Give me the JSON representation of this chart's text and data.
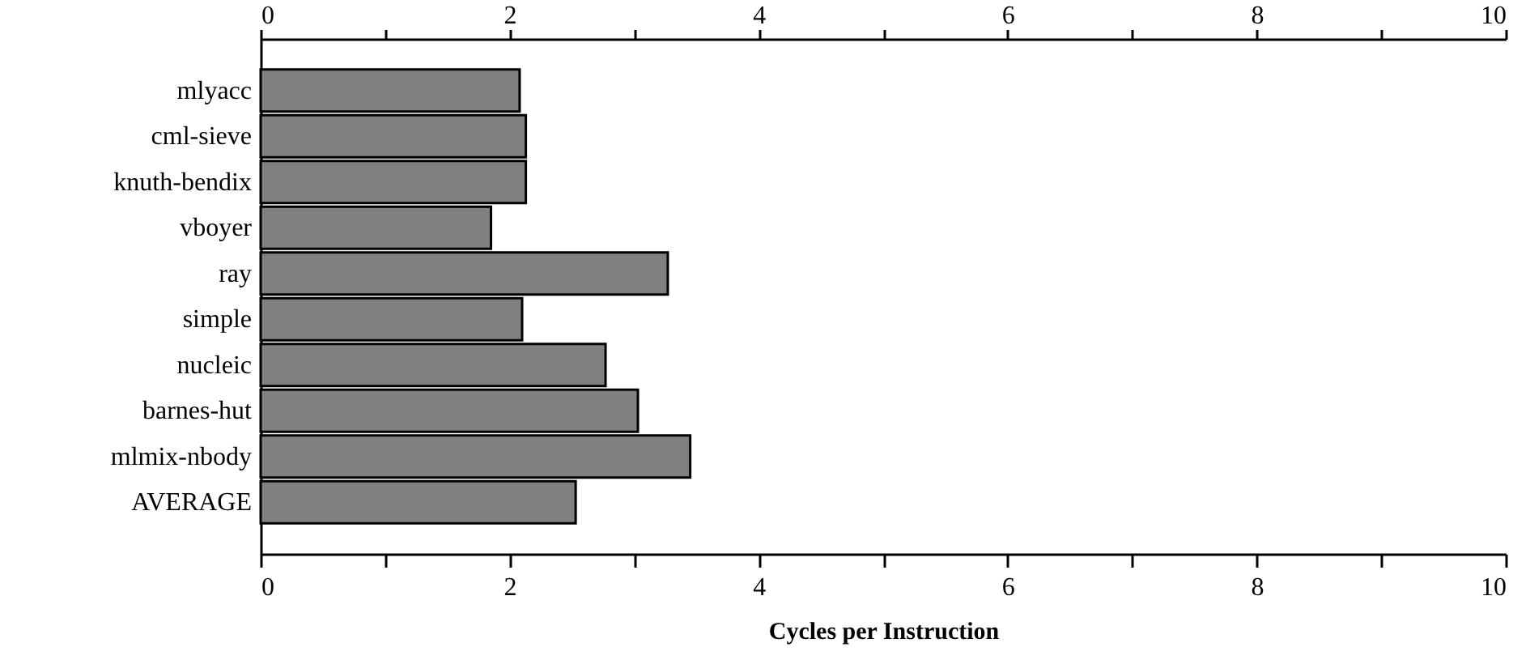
{
  "chart_data": {
    "type": "bar",
    "orientation": "horizontal",
    "xlabel": "Cycles per Instruction",
    "categories": [
      "mlyacc",
      "cml-sieve",
      "knuth-bendix",
      "vboyer",
      "ray",
      "simple",
      "nucleic",
      "barnes-hut",
      "mlmix-nbody",
      "AVERAGE"
    ],
    "values": [
      2.08,
      2.13,
      2.13,
      1.85,
      3.27,
      2.1,
      2.77,
      3.03,
      3.45,
      2.53
    ],
    "color": "#808080",
    "xlim": [
      0,
      10
    ],
    "xticks": [
      0,
      {
        "value": 1,
        "label": null
      },
      2,
      {
        "value": 3,
        "label": null
      },
      4,
      {
        "value": 5,
        "label": null
      },
      6,
      {
        "value": 7,
        "label": null
      },
      8,
      {
        "value": 9,
        "label": null
      },
      10
    ],
    "x2lim": [
      0,
      10
    ],
    "x2ticks": [
      0,
      {
        "value": 1,
        "label": null
      },
      2,
      {
        "value": 3,
        "label": null
      },
      4,
      {
        "value": 5,
        "label": null
      },
      6,
      {
        "value": 7,
        "label": null
      },
      8,
      {
        "value": 9,
        "label": null
      },
      10
    ],
    "grid": false
  }
}
